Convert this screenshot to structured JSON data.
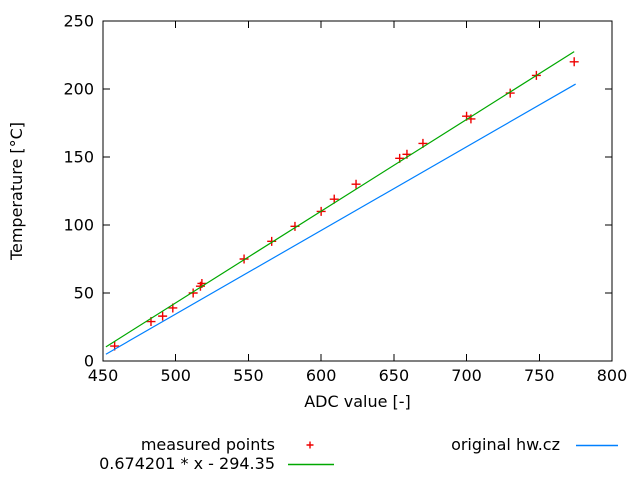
{
  "chart_data": {
    "type": "scatter",
    "title": "",
    "xlabel": "ADC value [-]",
    "ylabel": "Temperature [°C]",
    "xlim": [
      450,
      800
    ],
    "ylim": [
      0,
      250
    ],
    "xticks": [
      450,
      500,
      550,
      600,
      650,
      700,
      750,
      800
    ],
    "yticks": [
      0,
      50,
      100,
      150,
      200,
      250
    ],
    "grid": false,
    "legend_position": "below-plot",
    "axis_color": "#000000",
    "series": [
      {
        "name": "measured points",
        "kind": "points",
        "marker": "plus",
        "color": "#ee0000",
        "points": [
          [
            458,
            11
          ],
          [
            483,
            29
          ],
          [
            491,
            33
          ],
          [
            498,
            39
          ],
          [
            512,
            50
          ],
          [
            517,
            55
          ],
          [
            518,
            57
          ],
          [
            547,
            75
          ],
          [
            566,
            88
          ],
          [
            582,
            99
          ],
          [
            600,
            110
          ],
          [
            609,
            119
          ],
          [
            624,
            130
          ],
          [
            654,
            149
          ],
          [
            659,
            152
          ],
          [
            670,
            160
          ],
          [
            700,
            180
          ],
          [
            703,
            178
          ],
          [
            730,
            197
          ],
          [
            748,
            210
          ],
          [
            774,
            220
          ]
        ]
      },
      {
        "name": "0.674201 * x - 294.35",
        "kind": "line",
        "color": "#00a800",
        "slope": 0.674201,
        "intercept": -294.35,
        "x_range": [
          452,
          774
        ]
      },
      {
        "name": "original hw.cz",
        "kind": "line",
        "color": "#0080ff",
        "slope": 0.615,
        "intercept": -273.0,
        "x_range": [
          452,
          775
        ]
      }
    ]
  }
}
